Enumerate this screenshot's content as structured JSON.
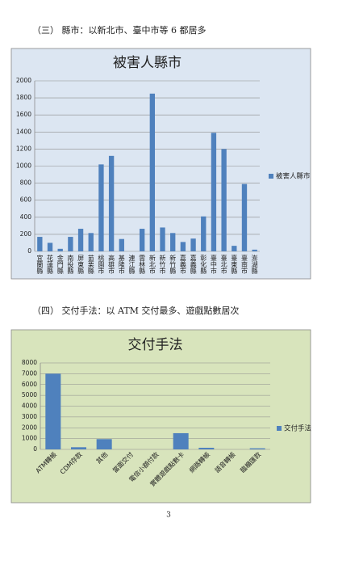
{
  "heading_1": "（三） 縣市：以新北市、臺中市等 6 都居多",
  "chart_data": [
    {
      "type": "bar",
      "title": "被害人縣市",
      "categories": [
        "宜蘭縣",
        "花蓮縣",
        "金門縣",
        "南投縣",
        "屏東縣",
        "苗栗縣",
        "桃園市",
        "高雄市",
        "基隆市",
        "連江縣",
        "雲林縣",
        "新北市",
        "新竹市",
        "新竹縣",
        "嘉義市",
        "嘉義縣",
        "彰化縣",
        "臺中市",
        "臺北市",
        "臺東縣",
        "臺南市",
        "澎湖縣"
      ],
      "series": [
        {
          "name": "被害人縣市",
          "color": "#4f81bd",
          "values": [
            170,
            100,
            30,
            170,
            265,
            215,
            1020,
            1120,
            145,
            0,
            265,
            1850,
            280,
            215,
            110,
            150,
            410,
            1390,
            1200,
            65,
            790,
            20
          ]
        }
      ],
      "ylim": [
        0,
        2000
      ],
      "yticks": [
        0,
        200,
        400,
        600,
        800,
        1000,
        1200,
        1400,
        1600,
        1800,
        2000
      ],
      "grid": true,
      "legend": "right"
    },
    {
      "type": "bar",
      "title": "交付手法",
      "categories": [
        "ATM轉帳",
        "CDM存款",
        "其他",
        "當面交付",
        "電信小額付款",
        "實體遊戲點數卡",
        "網路轉帳",
        "語音轉帳",
        "臨櫃匯款"
      ],
      "series": [
        {
          "name": "交付手法",
          "color": "#4f81bd",
          "values": [
            7000,
            200,
            950,
            0,
            0,
            1500,
            150,
            0,
            100
          ]
        }
      ],
      "ylim": [
        0,
        8000
      ],
      "yticks": [
        0,
        1000,
        2000,
        3000,
        4000,
        5000,
        6000,
        7000,
        8000
      ],
      "grid": true,
      "legend": "right"
    }
  ],
  "heading_2": "（四） 交付手法：以 ATM 交付最多、遊戲點數居次",
  "page_number": "3"
}
